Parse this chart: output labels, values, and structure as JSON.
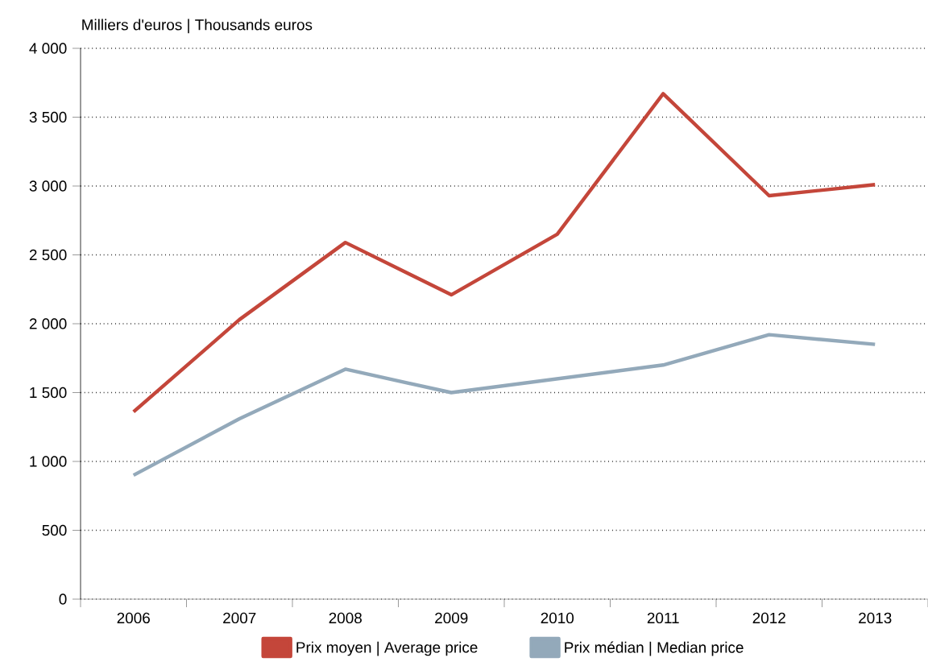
{
  "chart_data": {
    "type": "line",
    "title": "Milliers d'euros | Thousands euros",
    "categories": [
      "2006",
      "2007",
      "2008",
      "2009",
      "2010",
      "2011",
      "2012",
      "2013"
    ],
    "series": [
      {
        "name": "Prix moyen | Average price",
        "color": "#c4463a",
        "values": [
          1360,
          2030,
          2590,
          2210,
          2650,
          3670,
          2930,
          3010
        ]
      },
      {
        "name": "Prix médian | Median price",
        "color": "#93a9ba",
        "values": [
          900,
          1310,
          1670,
          1500,
          1600,
          1700,
          1920,
          1850
        ]
      }
    ],
    "ylim": [
      0,
      4000
    ],
    "yticks": [
      0,
      500,
      {
        "value": 1000,
        "label": "1 000"
      },
      {
        "value": 1500,
        "label": "1 500"
      },
      {
        "value": 2000,
        "label": "2 000"
      },
      {
        "value": 2500,
        "label": "2 500"
      },
      {
        "value": 3000,
        "label": "3 000"
      },
      {
        "value": 3500,
        "label": "3 500"
      },
      {
        "value": 4000,
        "label": "4 000"
      }
    ],
    "grid": "y",
    "legend": "bottom",
    "marker": "none",
    "line_style": "solid"
  }
}
